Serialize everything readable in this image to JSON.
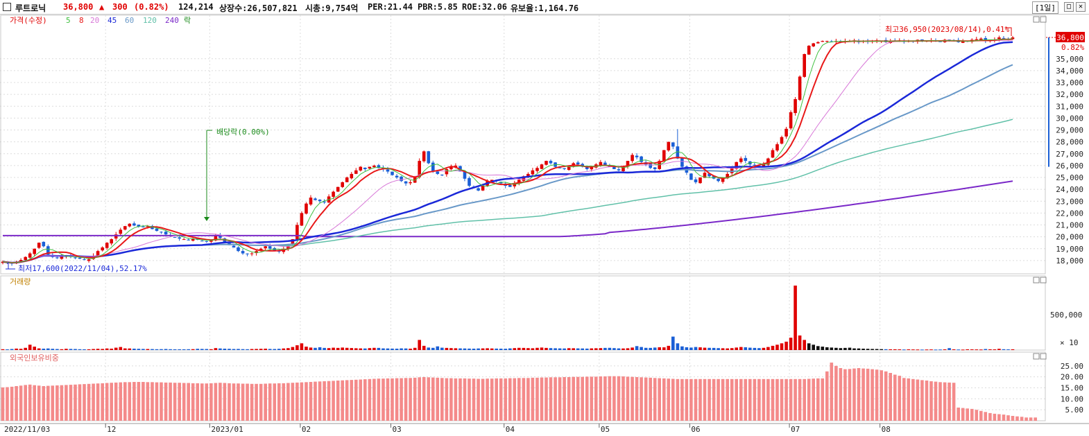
{
  "header": {
    "name": "루트로닉",
    "price": "36,800",
    "change_arrow": "▲",
    "change": "300",
    "change_pct": "(0.82%)",
    "volume": "124,214",
    "listed_shares": "상장수:26,507,821",
    "market_cap": "시총:9,754억",
    "per": "PER:21.44",
    "pbr": "PBR:5.85",
    "roe": "ROE:32.06",
    "float_ratio": "유보율:1,164.76",
    "period": "[1일]",
    "btn_restore": "□",
    "btn_close": "✕"
  },
  "colors": {
    "up": "#e00000",
    "down": "#1a5fd6",
    "ma5": "#3fc03f",
    "ma8": "#e81818",
    "ma20": "#d878d8",
    "ma45": "#1a28d8",
    "ma60": "#6898c8",
    "ma120": "#60c0a8",
    "ma240": "#7a28c8",
    "foreign": "#f48a8a",
    "grid": "#dcdcdc",
    "dividend": "#1a8a1a"
  },
  "legend": {
    "price": "가격(수정)",
    "ma5": "5",
    "ma8": "8",
    "ma20": "20",
    "ma45": "45",
    "ma60": "60",
    "ma120": "120",
    "ma240": "240",
    "rak": "락"
  },
  "chart_data": [
    {
      "type": "candlestick",
      "title": "가격(수정)",
      "ylim": [
        17000,
        37500
      ],
      "yticks": [
        "18,000",
        "19,000",
        "20,000",
        "21,000",
        "22,000",
        "23,000",
        "24,000",
        "25,000",
        "26,000",
        "27,000",
        "28,000",
        "29,000",
        "30,000",
        "31,000",
        "32,000",
        "33,000",
        "34,000",
        "35,000"
      ],
      "last_price_label": "36,800",
      "last_pct_label": "0.82%",
      "x_labels": [
        "2022/11/03",
        "12",
        "2023/01",
        "02",
        "03",
        "04",
        "05",
        "06",
        "07",
        "08"
      ],
      "annotations": {
        "high": "최고36,950(2023/08/14),0.41%",
        "low": "최저17,600(2022/11/04),52.17%",
        "dividend": "배당락(0.00%)"
      },
      "close_series": [
        17900,
        17800,
        17750,
        17900,
        18050,
        18300,
        18600,
        19000,
        19500,
        19200,
        18500,
        18300,
        18200,
        18400,
        18450,
        18300,
        18200,
        18150,
        18050,
        18100,
        18400,
        18800,
        19100,
        19500,
        19800,
        20200,
        20600,
        20900,
        21100,
        20950,
        20850,
        20800,
        20900,
        20650,
        20500,
        20400,
        20200,
        20050,
        19950,
        19850,
        19800,
        19700,
        19850,
        19750,
        19650,
        19600,
        19700,
        20100,
        19900,
        19500,
        19300,
        19100,
        18800,
        18600,
        18550,
        18600,
        18800,
        19000,
        19200,
        19000,
        18800,
        18750,
        19000,
        19300,
        19800,
        21000,
        22000,
        22800,
        23300,
        23100,
        23000,
        22900,
        23400,
        23800,
        24200,
        24600,
        25000,
        25300,
        25600,
        25900,
        25700,
        25900,
        26000,
        25800,
        25700,
        25500,
        25200,
        25000,
        24700,
        24500,
        24600,
        25000,
        26400,
        27200,
        26200,
        25500,
        25300,
        25200,
        25700,
        25900,
        26000,
        25500,
        24900,
        24300,
        24100,
        23900,
        24300,
        24700,
        24800,
        24700,
        24500,
        24300,
        24200,
        24500,
        24800,
        25100,
        25300,
        25600,
        25800,
        26100,
        26400,
        26200,
        25900,
        25800,
        25700,
        25900,
        26200,
        26100,
        25900,
        25700,
        25900,
        26100,
        26300,
        26000,
        25900,
        25700,
        25600,
        25900,
        26400,
        26900,
        26700,
        26300,
        26100,
        25800,
        25700,
        26400,
        27300,
        28000,
        27600,
        26600,
        25900,
        25400,
        24800,
        24600,
        25000,
        25400,
        25100,
        24900,
        24700,
        24900,
        25300,
        25800,
        26300,
        26600,
        26400,
        26100,
        26000,
        25900,
        26100,
        26600,
        27300,
        27800,
        28400,
        29100,
        30500,
        31600,
        33500,
        35400,
        36100,
        36300,
        36400,
        36500,
        36500,
        36400,
        36500,
        36450,
        36500,
        36500,
        36550,
        36400,
        36500,
        36450,
        36500,
        36550,
        36500,
        36400,
        36500,
        36500,
        36550,
        36450,
        36500,
        36500,
        36600,
        36450,
        36500,
        36550,
        36500,
        36450,
        36600,
        36500,
        36550,
        36400,
        36450,
        36500,
        36600,
        36650,
        36700,
        36500,
        36550,
        36600,
        36800,
        36700,
        36600,
        36800
      ],
      "ma240_left_value": 20100,
      "ma240_right_value": 24700,
      "ma120_right_value": 29900,
      "ma60_right_value": 34500,
      "ma45_right_value": 36400
    },
    {
      "type": "bar",
      "title": "거래량",
      "ytick": "500,000",
      "unit": "× 10",
      "peak_value": 1150000,
      "values": [
        15000,
        12000,
        18000,
        26000,
        22000,
        40000,
        95000,
        60000,
        30000,
        25000,
        28000,
        22000,
        18000,
        15000,
        22000,
        20000,
        18000,
        15000,
        14000,
        13000,
        18000,
        22000,
        20000,
        28000,
        25000,
        42000,
        55000,
        30000,
        28000,
        25000,
        22000,
        20000,
        18000,
        17000,
        15000,
        16000,
        18000,
        15000,
        14000,
        13000,
        14000,
        15000,
        16000,
        22000,
        20000,
        18000,
        15000,
        35000,
        28000,
        25000,
        22000,
        18000,
        20000,
        16000,
        15000,
        18000,
        20000,
        22000,
        25000,
        20000,
        18000,
        22000,
        28000,
        35000,
        55000,
        85000,
        120000,
        60000,
        45000,
        40000,
        50000,
        38000,
        35000,
        42000,
        38000,
        45000,
        40000,
        36000,
        32000,
        30000,
        28000,
        35000,
        40000,
        38000,
        30000,
        28000,
        26000,
        25000,
        30000,
        28000,
        25000,
        40000,
        180000,
        75000,
        45000,
        40000,
        65000,
        42000,
        38000,
        35000,
        32000,
        30000,
        28000,
        26000,
        25000,
        28000,
        30000,
        32000,
        28000,
        26000,
        25000,
        24000,
        30000,
        35000,
        40000,
        38000,
        35000,
        32000,
        40000,
        45000,
        38000,
        35000,
        32000,
        30000,
        28000,
        34000,
        32000,
        30000,
        28000,
        26000,
        30000,
        32000,
        35000,
        38000,
        40000,
        35000,
        30000,
        28000,
        32000,
        45000,
        70000,
        55000,
        40000,
        38000,
        45000,
        50000,
        48000,
        75000,
        240000,
        120000,
        65000,
        50000,
        45000,
        55000,
        48000,
        42000,
        40000,
        38000,
        35000,
        32000,
        30000,
        35000,
        45000,
        55000,
        50000,
        42000,
        38000,
        35000,
        40000,
        55000,
        75000,
        95000,
        120000,
        150000,
        220000,
        1150000,
        260000,
        180000,
        120000,
        95000,
        70000,
        60000,
        50000,
        45000,
        40000,
        35000,
        38000,
        42000,
        30000,
        28000,
        25000,
        22000,
        20000,
        18000,
        16000,
        15000,
        14000,
        13000,
        12000,
        10000,
        12000,
        11000,
        10000,
        9000,
        10000,
        11000,
        9000,
        10000,
        12000,
        35000,
        12000,
        10000,
        9000,
        14000,
        12000,
        11000,
        10000,
        18000,
        14000,
        12000,
        22000,
        15000,
        12000,
        14000
      ]
    },
    {
      "type": "bar",
      "title": "외국인보유비중",
      "ylim": [
        0,
        30
      ],
      "yticks": [
        "5.00",
        "10.00",
        "15.00",
        "20.00",
        "25.00"
      ],
      "values": [
        15.2,
        15.3,
        15.5,
        15.8,
        16.0,
        16.3,
        16.5,
        16.2,
        16.0,
        15.8,
        15.9,
        16.0,
        16.1,
        16.2,
        16.3,
        16.4,
        16.5,
        16.6,
        16.7,
        16.8,
        16.9,
        17.0,
        17.1,
        17.2,
        17.3,
        17.4,
        17.5,
        17.6,
        17.6,
        17.7,
        17.7,
        17.7,
        17.6,
        17.6,
        17.5,
        17.5,
        17.4,
        17.4,
        17.3,
        17.3,
        17.2,
        17.2,
        17.1,
        17.1,
        17.0,
        17.0,
        17.1,
        17.2,
        17.3,
        17.2,
        17.1,
        17.0,
        17.0,
        16.9,
        16.9,
        16.8,
        16.8,
        16.8,
        16.9,
        17.0,
        17.0,
        17.1,
        17.1,
        17.2,
        17.3,
        17.4,
        17.5,
        17.6,
        17.7,
        17.8,
        17.9,
        18.0,
        18.1,
        18.2,
        18.3,
        18.4,
        18.5,
        18.6,
        18.7,
        18.8,
        18.9,
        19.0,
        19.1,
        19.2,
        19.2,
        19.3,
        19.3,
        19.4,
        19.4,
        19.5,
        19.5,
        19.6,
        19.8,
        19.9,
        19.8,
        19.7,
        19.6,
        19.5,
        19.4,
        19.4,
        19.3,
        19.3,
        19.3,
        19.2,
        19.2,
        19.1,
        19.1,
        19.2,
        19.2,
        19.3,
        19.3,
        19.3,
        19.4,
        19.4,
        19.5,
        19.5,
        19.5,
        19.6,
        19.6,
        19.7,
        19.7,
        19.8,
        19.8,
        19.8,
        19.9,
        19.9,
        20.0,
        20.0,
        20.0,
        20.1,
        20.1,
        20.1,
        20.2,
        20.2,
        20.3,
        20.3,
        20.3,
        20.2,
        20.1,
        20.0,
        19.9,
        19.8,
        19.7,
        19.6,
        19.5,
        19.4,
        19.3,
        19.2,
        19.1,
        19.0,
        19.0,
        19.0,
        19.0,
        19.0,
        19.0,
        19.0,
        19.0,
        19.0,
        19.0,
        19.0,
        19.0,
        19.0,
        19.0,
        19.0,
        19.0,
        19.0,
        19.0,
        19.0,
        19.0,
        19.0,
        19.0,
        19.0,
        19.0,
        19.0,
        19.0,
        19.0,
        19.0,
        19.0,
        19.1,
        19.2,
        19.3,
        19.3,
        22.5,
        26.5,
        25.0,
        24.0,
        23.5,
        23.6,
        23.8,
        24.0,
        23.8,
        23.7,
        23.5,
        23.3,
        23.0,
        22.5,
        21.8,
        21.0,
        20.5,
        19.5,
        19.3,
        19.0,
        18.8,
        18.5,
        18.3,
        18.0,
        17.8,
        17.6,
        17.5,
        17.4,
        17.3,
        6.0,
        5.8,
        5.6,
        5.4,
        5.0,
        4.5,
        4.0,
        3.5,
        3.2,
        3.0,
        2.8,
        2.5,
        2.2,
        2.0,
        1.8,
        1.5,
        1.5,
        1.5
      ]
    }
  ]
}
